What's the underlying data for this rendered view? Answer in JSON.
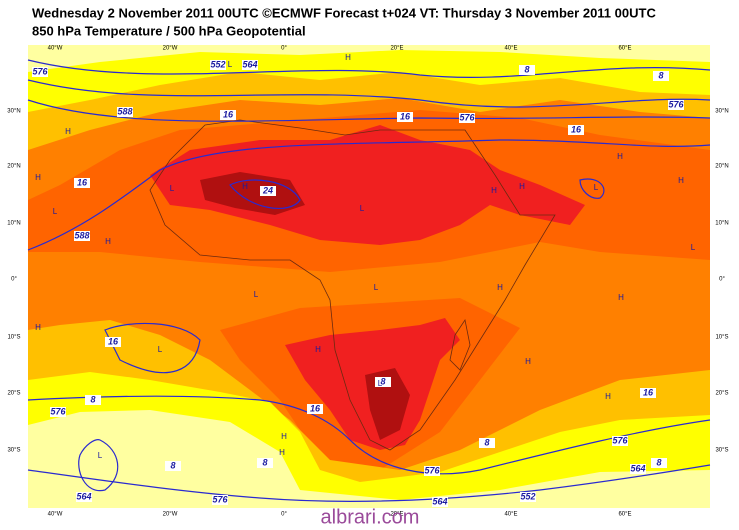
{
  "header": {
    "title": "Wednesday 2 November 2011 00UTC ©ECMWF Forecast t+024 VT: Thursday 3 November 2011 00UTC",
    "subtitle": "850 hPa Temperature / 500 hPa Geopotential"
  },
  "map": {
    "longitude_labels": [
      "40°W",
      "20°W",
      "0°",
      "20°E",
      "40°E",
      "60°E"
    ],
    "latitude_labels": [
      "30°N",
      "20°N",
      "10°N",
      "0°",
      "10°S",
      "20°S",
      "30°S"
    ],
    "contour_labels": [
      "576",
      "552",
      "564",
      "588",
      "16",
      "16",
      "576",
      "576",
      "16",
      "8",
      "8",
      "16",
      "24",
      "588",
      "16",
      "16",
      "8",
      "576",
      "8",
      "8",
      "8",
      "8",
      "8",
      "16",
      "576",
      "564",
      "552",
      "564",
      "576",
      "576",
      "564"
    ],
    "pressure_centers": [
      "L",
      "H",
      "H",
      "H",
      "L",
      "H",
      "L",
      "H",
      "L",
      "H",
      "H",
      "H",
      "L",
      "H",
      "L",
      "L",
      "L",
      "H",
      "H",
      "H",
      "L",
      "H",
      "L",
      "H",
      "H",
      "H",
      "L",
      "H"
    ]
  },
  "watermark": "albrari.com"
}
